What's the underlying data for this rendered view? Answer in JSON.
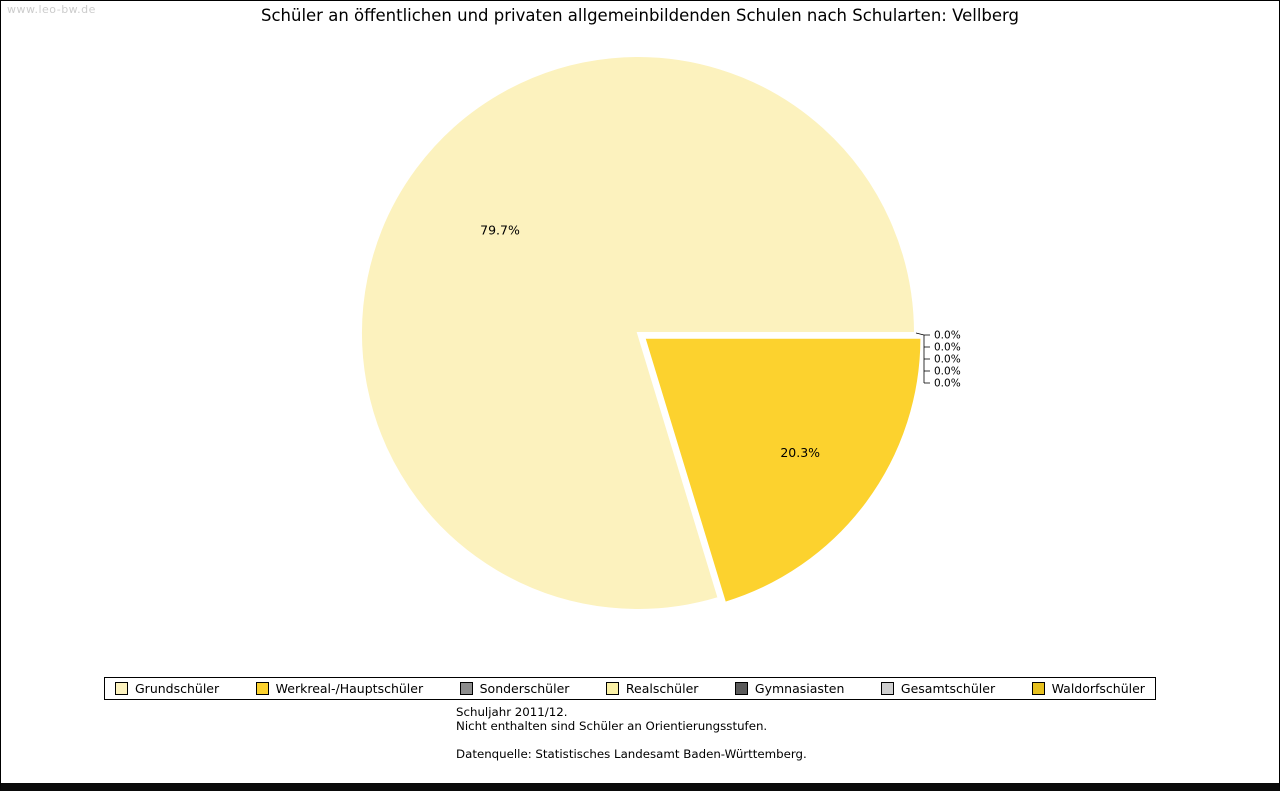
{
  "watermark": "www.leo-bw.de",
  "chart_data": {
    "type": "pie",
    "title": "Schüler an öffentlichen und privaten allgemeinbildenden Schulen nach Schularten: Vellberg",
    "categories": [
      "Grundschüler",
      "Werkreal-/Hauptschüler",
      "Sonderschüler",
      "Realschüler",
      "Gymnasiasten",
      "Gesamtschüler",
      "Waldorfschüler"
    ],
    "values": [
      79.7,
      20.3,
      0.0,
      0.0,
      0.0,
      0.0,
      0.0
    ],
    "percent_labels": [
      "79.7%",
      "20.3%",
      "0.0%",
      "0.0%",
      "0.0%",
      "0.0%",
      "0.0%"
    ],
    "colors": [
      "#FCF2BE",
      "#FCD22E",
      "#8C8C8C",
      "#FBF1A6",
      "#5A5A5A",
      "#CFCFCF",
      "#E6C01F"
    ],
    "start_angle_deg": 0,
    "direction": "counterclockwise",
    "exploded_index": 1,
    "legend_position": "bottom",
    "unit": "%"
  },
  "footer": {
    "line1": "Schuljahr 2011/12.",
    "line2": "Nicht enthalten sind Schüler an Orientierungsstufen.",
    "source": "Datenquelle: Statistisches Landesamt Baden-Württemberg."
  }
}
